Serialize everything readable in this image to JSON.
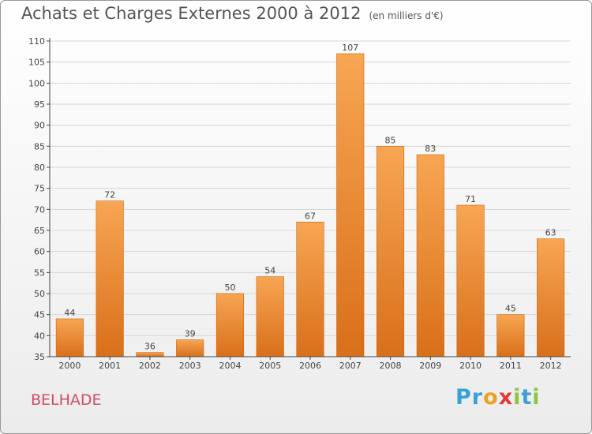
{
  "chart_data": {
    "type": "bar",
    "title": "Achats et Charges Externes 2000 à 2012",
    "unit_note": "(en milliers d'€)",
    "categories": [
      "2000",
      "2001",
      "2002",
      "2003",
      "2004",
      "2005",
      "2006",
      "2007",
      "2008",
      "2009",
      "2010",
      "2011",
      "2012"
    ],
    "values": [
      44,
      72,
      36,
      39,
      50,
      54,
      67,
      107,
      85,
      83,
      71,
      45,
      63
    ],
    "ylim": [
      35,
      110
    ],
    "yticks": [
      35,
      40,
      45,
      50,
      55,
      60,
      65,
      70,
      75,
      80,
      85,
      90,
      95,
      100,
      105,
      110
    ],
    "grid": true,
    "bar_color_top": "#f7a653",
    "bar_color_bottom": "#d96f1a"
  },
  "footer": {
    "place": "BELHADE",
    "logo_letters": [
      {
        "ch": "P",
        "color": "#3aa0d8"
      },
      {
        "ch": "r",
        "color": "#3aa0d8"
      },
      {
        "ch": "o",
        "color": "#f0a020"
      },
      {
        "ch": "x",
        "color": "#e03a3a"
      },
      {
        "ch": "i",
        "color": "#8cc63f"
      },
      {
        "ch": "t",
        "color": "#3aa0d8"
      },
      {
        "ch": "i",
        "color": "#8cc63f"
      }
    ]
  }
}
